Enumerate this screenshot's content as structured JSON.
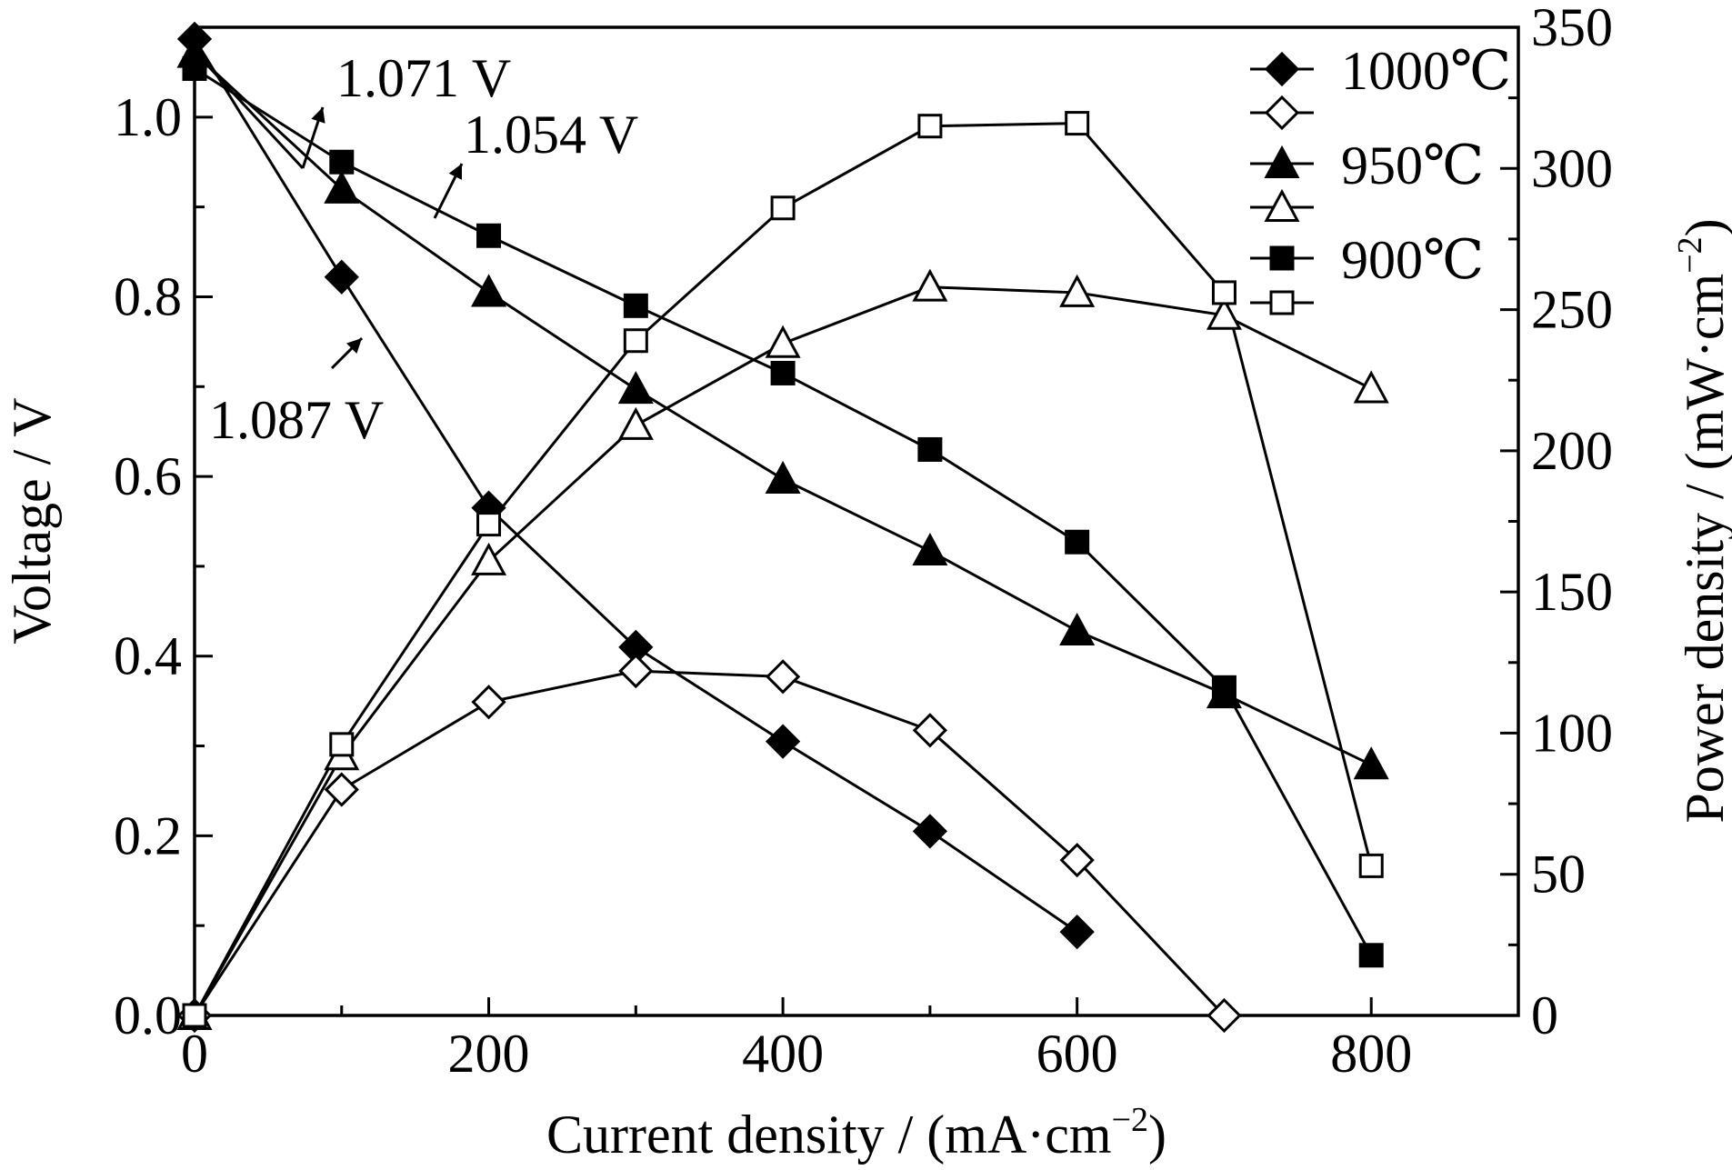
{
  "chart_data": {
    "type": "line",
    "title": "",
    "xlabel": "Current density / (mA·cm",
    "xlabel_sup": "−2",
    "xlabel_tail": ")",
    "ylabel": "Voltage / V",
    "y2label": "Power density / (mW·cm",
    "y2label_sup": "−2",
    "y2label_tail": ")",
    "xlim": [
      0,
      900
    ],
    "ylim": [
      0,
      1.1
    ],
    "y2lim": [
      0,
      350
    ],
    "x_ticks": [
      0,
      200,
      400,
      600,
      800
    ],
    "x_tick_labels": [
      "0",
      "200",
      "400",
      "600",
      "800"
    ],
    "y_ticks": [
      0,
      0.2,
      0.4,
      0.6,
      0.8,
      1.0
    ],
    "y_tick_labels": [
      "0.0",
      "0.2",
      "0.4",
      "0.6",
      "0.8",
      "1.0"
    ],
    "y2_ticks": [
      0,
      50,
      100,
      150,
      200,
      250,
      300,
      350
    ],
    "y2_tick_labels": [
      "0",
      "50",
      "100",
      "150",
      "200",
      "250",
      "300",
      "350"
    ],
    "legend_position": "top-right",
    "series": [
      {
        "name": "1000℃",
        "axis": "left",
        "marker": "diamond",
        "filled": true,
        "x": [
          0,
          100,
          200,
          300,
          400,
          500,
          600
        ],
        "y": [
          1.087,
          0.822,
          0.565,
          0.41,
          0.305,
          0.205,
          0.093
        ]
      },
      {
        "name": "",
        "axis": "right",
        "marker": "diamond",
        "filled": false,
        "x": [
          0,
          100,
          200,
          300,
          400,
          500,
          600,
          700
        ],
        "y": [
          0,
          80,
          111,
          122,
          120,
          101,
          55,
          0
        ]
      },
      {
        "name": "950℃",
        "axis": "left",
        "marker": "triangle",
        "filled": true,
        "x": [
          0,
          100,
          200,
          300,
          400,
          500,
          600,
          700,
          800
        ],
        "y": [
          1.071,
          0.92,
          0.805,
          0.697,
          0.597,
          0.517,
          0.428,
          0.358,
          0.279
        ]
      },
      {
        "name": "",
        "axis": "right",
        "marker": "triangle",
        "filled": false,
        "x": [
          0,
          100,
          200,
          300,
          400,
          500,
          600,
          700,
          800
        ],
        "y": [
          0,
          92,
          161,
          209,
          238,
          258,
          256,
          248,
          222
        ]
      },
      {
        "name": "900℃",
        "axis": "left",
        "marker": "square",
        "filled": true,
        "x": [
          0,
          100,
          200,
          300,
          400,
          500,
          600,
          700,
          800
        ],
        "y": [
          1.054,
          0.95,
          0.868,
          0.79,
          0.715,
          0.63,
          0.527,
          0.365,
          0.067
        ]
      },
      {
        "name": "",
        "axis": "right",
        "marker": "square",
        "filled": false,
        "x": [
          0,
          100,
          200,
          300,
          400,
          500,
          600,
          700,
          800
        ],
        "y": [
          0,
          96,
          174,
          239,
          286,
          315,
          316,
          256,
          53
        ]
      }
    ],
    "annotations": [
      {
        "text": "1.071 V"
      },
      {
        "text": "1.054 V"
      },
      {
        "text": "1.087 V"
      }
    ]
  }
}
